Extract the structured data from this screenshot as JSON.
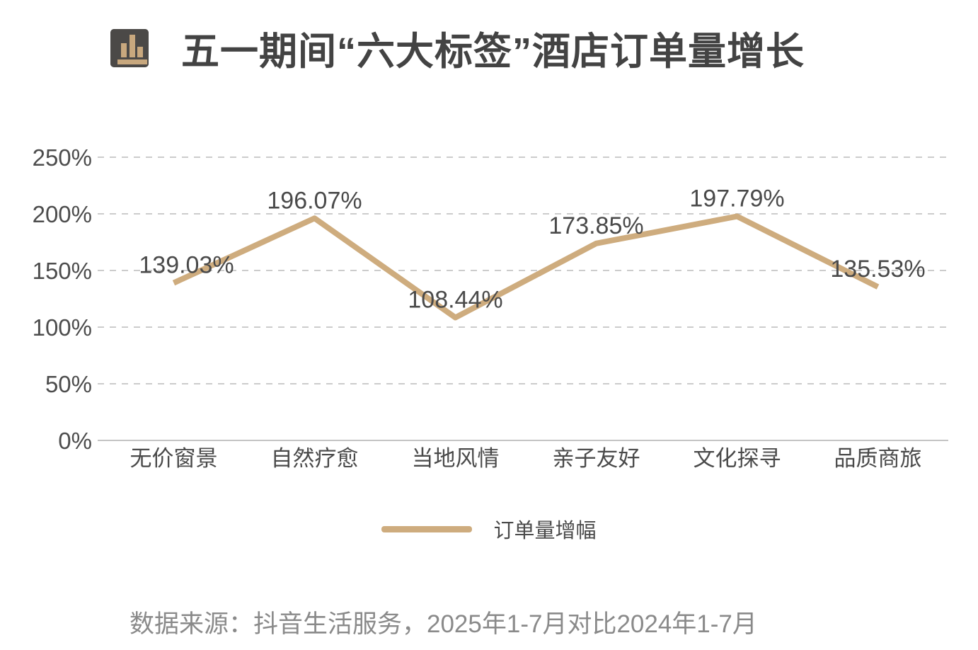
{
  "header": {
    "title": "五一期间“六大标签”酒店订单量增长",
    "icon": "bar-chart-icon"
  },
  "chart_data": {
    "type": "line",
    "title": "五一期间“六大标签”酒店订单量增长",
    "categories": [
      "无价窗景",
      "自然疗愈",
      "当地风情",
      "亲子友好",
      "文化探寻",
      "品质商旅"
    ],
    "series": [
      {
        "name": "订单量增幅",
        "values": [
          139.03,
          196.07,
          108.44,
          173.85,
          197.79,
          135.53
        ]
      }
    ],
    "value_labels": [
      "139.03%",
      "196.07%",
      "108.44%",
      "173.85%",
      "197.79%",
      "135.53%"
    ],
    "xlabel": "",
    "ylabel": "",
    "ylim": [
      0,
      250
    ],
    "ytick_step": 50,
    "ytick_labels": [
      "0%",
      "50%",
      "100%",
      "150%",
      "200%",
      "250%"
    ],
    "grid": "horizontal-dashed",
    "legend_position": "bottom"
  },
  "legend": {
    "label": "订单量增幅"
  },
  "footer": {
    "source": "数据来源：抖音生活服务，2025年1-7月对比2024年1-7月"
  },
  "colors": {
    "line": "#ceac7e",
    "grid": "#cccccc",
    "axis": "#c4c4c4",
    "tick_text": "#4d4d4d",
    "label_text": "#4a4a4a",
    "title_text": "#434343",
    "source_text": "#8a8a8a",
    "icon_bg": "#4b4947",
    "icon_bars": "#c8a87e"
  }
}
